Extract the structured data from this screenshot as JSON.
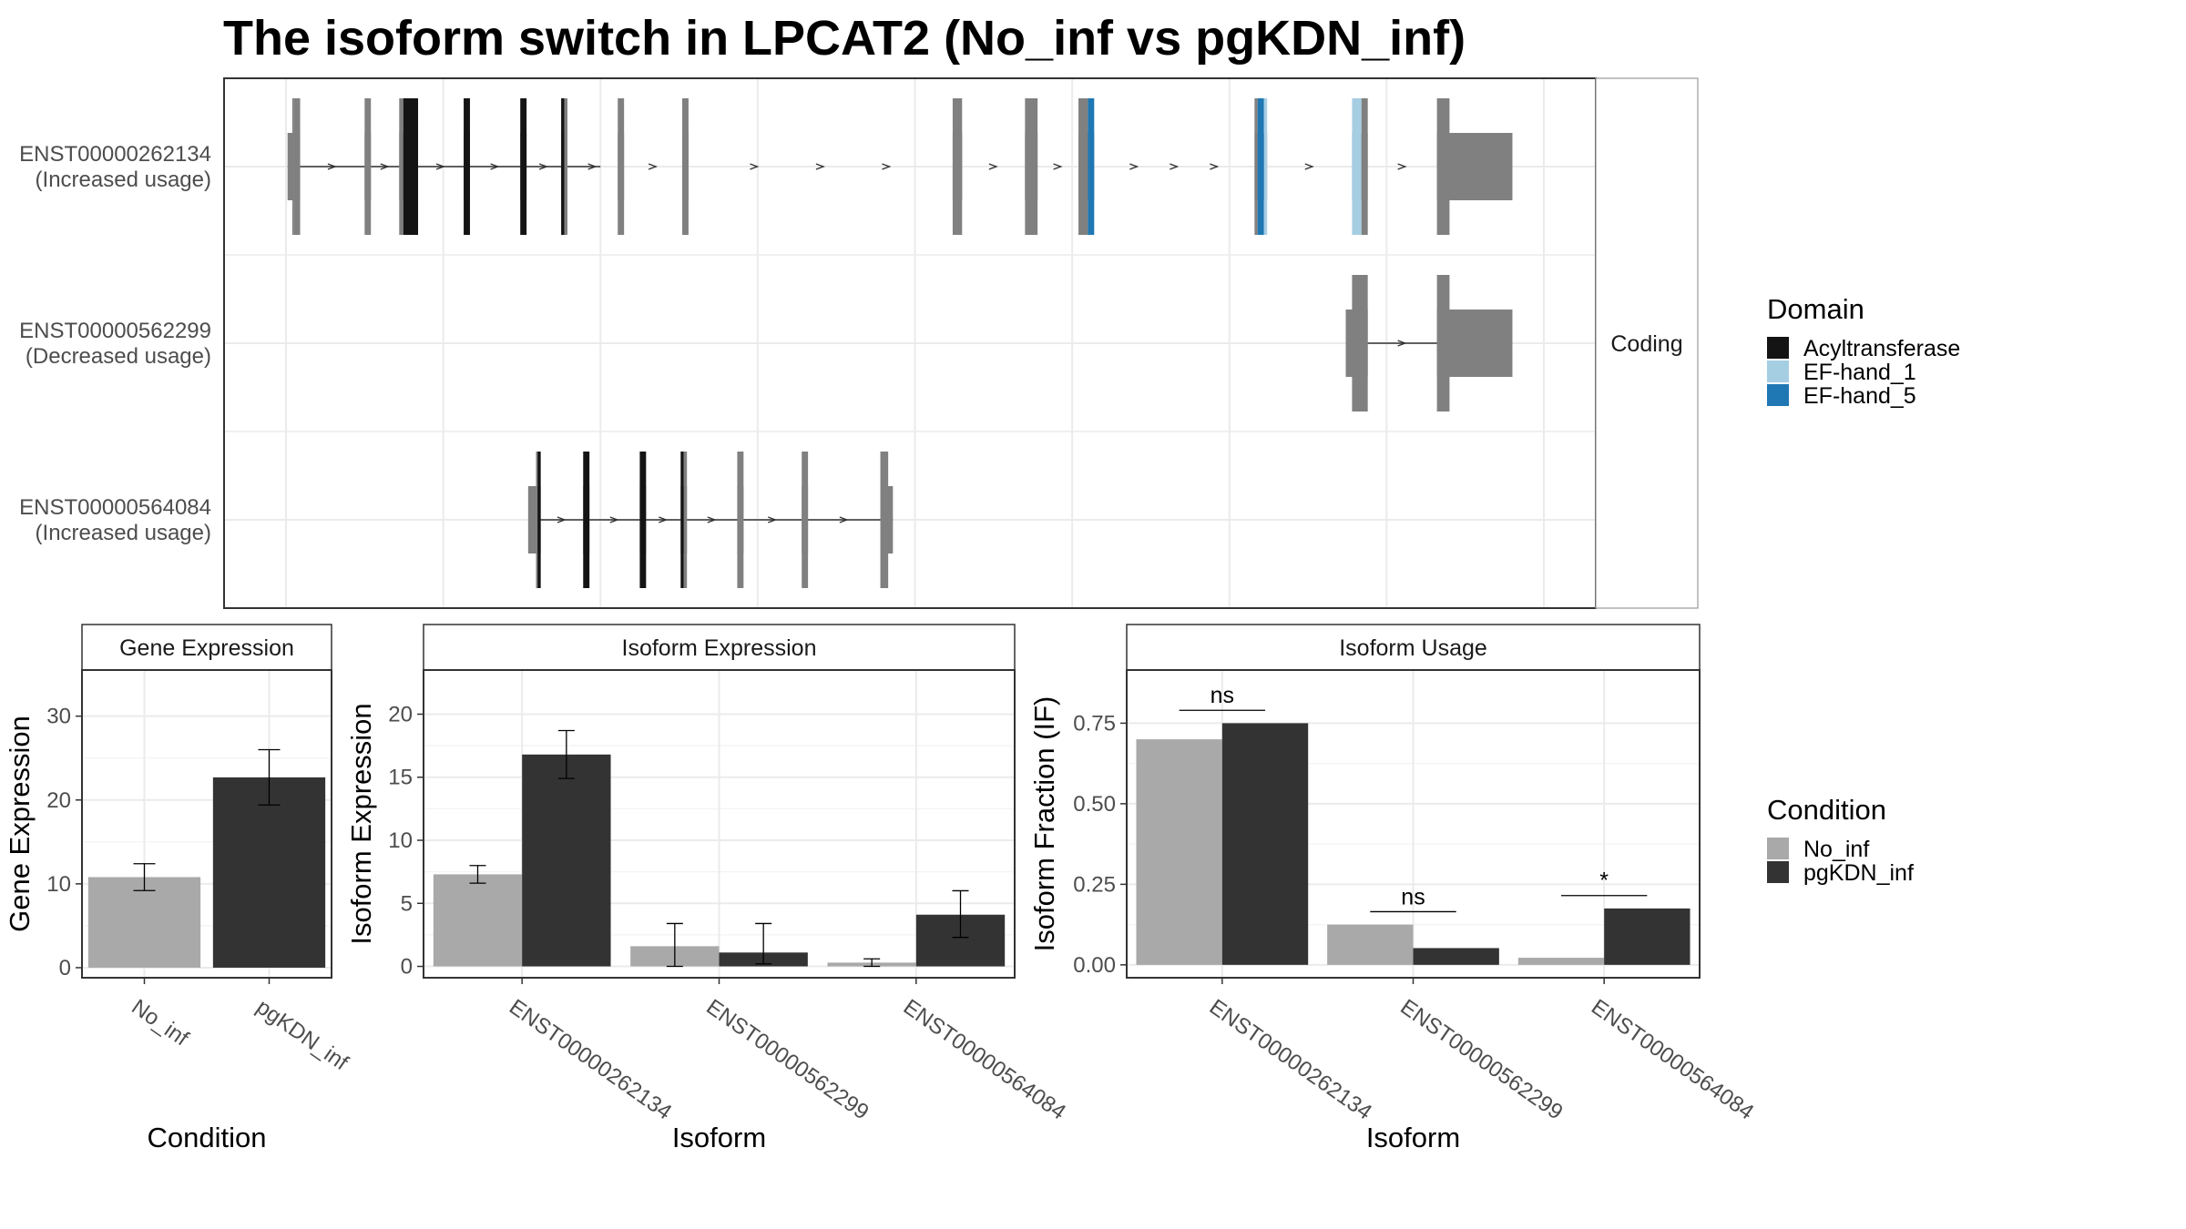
{
  "title": "The isoform switch in LPCAT2 (No_inf vs pgKDN_inf)",
  "colors": {
    "Acyltransferase": "#141414",
    "EF-hand_1": "#a6cee3",
    "EF-hand_5": "#1f78b4",
    "no_domain": "#808080",
    "No_inf": "#a9a9a9",
    "pgKDN_inf": "#333333"
  },
  "chart_data": [
    {
      "type": "gene_structure",
      "strip_label": "Coding",
      "transcripts": [
        {
          "id": "ENST00000262134",
          "label": "(Increased usage)",
          "start": 0.5,
          "end": 100,
          "exons": [
            {
              "start": 0.5,
              "end": 2.5,
              "cds": [
                {
                  "start": 2.0,
                  "end": 2.5,
                  "domain": null
                }
              ]
            },
            {
              "start": 2.5,
              "end": 4.5,
              "cds": [
                {
                  "start": 2.5,
                  "end": 4.5,
                  "domain": null
                }
              ]
            },
            {
              "start": 25,
              "end": 27,
              "cds": [
                {
                  "start": 25,
                  "end": 27,
                  "domain": null
                }
              ]
            },
            {
              "start": 36,
              "end": 42,
              "cds": [
                {
                  "start": 36,
                  "end": 37.3,
                  "domain": null
                },
                {
                  "start": 37.3,
                  "end": 42,
                  "domain": "Acyltransferase"
                }
              ]
            },
            {
              "start": 56.5,
              "end": 58.5,
              "cds": [
                {
                  "start": 56.5,
                  "end": 58.5,
                  "domain": "Acyltransferase"
                }
              ]
            },
            {
              "start": 74.5,
              "end": 76.5,
              "cds": [
                {
                  "start": 74.5,
                  "end": 76.5,
                  "domain": "Acyltransferase"
                }
              ]
            },
            {
              "start": 87.5,
              "end": 89.5,
              "cds": [
                {
                  "start": 87.5,
                  "end": 88.5,
                  "domain": "Acyltransferase"
                },
                {
                  "start": 88.5,
                  "end": 89.5,
                  "domain": null
                }
              ]
            },
            {
              "start": 105.5,
              "end": 107.5,
              "cds": [
                {
                  "start": 105.5,
                  "end": 107.5,
                  "domain": null
                }
              ]
            },
            {
              "start": 126,
              "end": 128,
              "cds": [
                {
                  "start": 126,
                  "end": 128,
                  "domain": null
                }
              ]
            },
            {
              "start": 212,
              "end": 215,
              "cds": [
                {
                  "start": 212,
                  "end": 215,
                  "domain": null
                }
              ]
            },
            {
              "start": 235,
              "end": 239,
              "cds": [
                {
                  "start": 235,
                  "end": 239,
                  "domain": null
                }
              ]
            },
            {
              "start": 252,
              "end": 257,
              "cds": [
                {
                  "start": 252,
                  "end": 255,
                  "domain": null
                },
                {
                  "start": 255,
                  "end": 257,
                  "domain": "EF-hand_5"
                }
              ]
            },
            {
              "start": 308,
              "end": 312,
              "cds": [
                {
                  "start": 308,
                  "end": 309,
                  "domain": null
                },
                {
                  "start": 309,
                  "end": 311,
                  "domain": "EF-hand_5"
                },
                {
                  "start": 311,
                  "end": 312,
                  "domain": "EF-hand_1"
                }
              ]
            },
            {
              "start": 339,
              "end": 344,
              "cds": [
                {
                  "start": 339,
                  "end": 342,
                  "domain": "EF-hand_1"
                },
                {
                  "start": 342,
                  "end": 344,
                  "domain": null
                }
              ]
            },
            {
              "start": 366,
              "end": 370,
              "cds": [
                {
                  "start": 366,
                  "end": 370,
                  "domain": null
                }
              ]
            },
            {
              "start": 370,
              "end": 390,
              "cds": []
            }
          ]
        },
        {
          "id": "ENST00000562299",
          "label": "(Decreased usage)",
          "start": 337,
          "end": 390,
          "exons": [
            {
              "start": 337,
              "end": 344,
              "cds": [
                {
                  "start": 339,
                  "end": 344,
                  "domain": null
                }
              ]
            },
            {
              "start": 366,
              "end": 390,
              "cds": [
                {
                  "start": 366,
                  "end": 370,
                  "domain": null
                }
              ]
            }
          ]
        },
        {
          "id": "ENST00000564084",
          "label": "(Increased usage)",
          "start": 77,
          "end": 193,
          "exons": [
            {
              "start": 77,
              "end": 81,
              "cds": [
                {
                  "start": 79.5,
                  "end": 80,
                  "domain": null
                },
                {
                  "start": 80,
                  "end": 81,
                  "domain": "Acyltransferase"
                }
              ]
            },
            {
              "start": 94.5,
              "end": 96.5,
              "cds": [
                {
                  "start": 94.5,
                  "end": 96.5,
                  "domain": "Acyltransferase"
                }
              ]
            },
            {
              "start": 112.5,
              "end": 114.5,
              "cds": [
                {
                  "start": 112.5,
                  "end": 114.5,
                  "domain": "Acyltransferase"
                }
              ]
            },
            {
              "start": 125.5,
              "end": 127.5,
              "cds": [
                {
                  "start": 125.5,
                  "end": 126.5,
                  "domain": "Acyltransferase"
                },
                {
                  "start": 126.5,
                  "end": 127.5,
                  "domain": null
                }
              ]
            },
            {
              "start": 143.5,
              "end": 145.5,
              "cds": [
                {
                  "start": 143.5,
                  "end": 145.5,
                  "domain": null
                }
              ]
            },
            {
              "start": 164,
              "end": 166,
              "cds": [
                {
                  "start": 164,
                  "end": 166,
                  "domain": null
                }
              ]
            },
            {
              "start": 189,
              "end": 193,
              "cds": [
                {
                  "start": 189,
                  "end": 191.5,
                  "domain": null
                }
              ]
            }
          ]
        }
      ],
      "legend": {
        "title": "Domain",
        "items": [
          "Acyltransferase",
          "EF-hand_1",
          "EF-hand_5"
        ]
      }
    },
    {
      "type": "bar",
      "strip_label": "Gene Expression",
      "xlabel": "Condition",
      "ylabel": "Gene Expression",
      "categories": [
        "No_inf",
        "pgKDN_inf"
      ],
      "values": [
        10.8,
        22.7
      ],
      "err_low": [
        9.2,
        19.4
      ],
      "err_high": [
        12.4,
        26.0
      ],
      "ylim": [
        -1.2,
        35.5
      ],
      "yticks": [
        0,
        10,
        20,
        30
      ]
    },
    {
      "type": "bar",
      "strip_label": "Isoform Expression",
      "xlabel": "Isoform",
      "ylabel": "Isoform Expression",
      "categories": [
        "ENST00000262134",
        "ENST00000562299",
        "ENST00000564084"
      ],
      "series": [
        {
          "name": "No_inf",
          "values": [
            7.3,
            1.6,
            0.3
          ],
          "err_low": [
            6.6,
            0.0,
            0.0
          ],
          "err_high": [
            8.0,
            3.4,
            0.6
          ]
        },
        {
          "name": "pgKDN_inf",
          "values": [
            16.8,
            1.1,
            4.1
          ],
          "err_low": [
            14.9,
            0.2,
            2.3
          ],
          "err_high": [
            18.7,
            3.4,
            6.0
          ]
        }
      ],
      "ylim": [
        -0.9,
        23.5
      ],
      "yticks": [
        0,
        5,
        10,
        15,
        20
      ]
    },
    {
      "type": "bar",
      "strip_label": "Isoform Usage",
      "xlabel": "Isoform",
      "ylabel": "Isoform Fraction (IF)",
      "categories": [
        "ENST00000262134",
        "ENST00000562299",
        "ENST00000564084"
      ],
      "series": [
        {
          "name": "No_inf",
          "values": [
            0.7,
            0.125,
            0.022
          ]
        },
        {
          "name": "pgKDN_inf",
          "values": [
            0.75,
            0.052,
            0.175
          ]
        }
      ],
      "significance": [
        "ns",
        "ns",
        "*"
      ],
      "sig_y": [
        0.79,
        0.165,
        0.215
      ],
      "ylim": [
        -0.04,
        0.915
      ],
      "yticks": [
        0.0,
        0.25,
        0.5,
        0.75
      ],
      "ytick_labels": [
        "0.00",
        "0.25",
        "0.50",
        "0.75"
      ]
    }
  ],
  "legend_condition": {
    "title": "Condition",
    "items": [
      "No_inf",
      "pgKDN_inf"
    ]
  }
}
